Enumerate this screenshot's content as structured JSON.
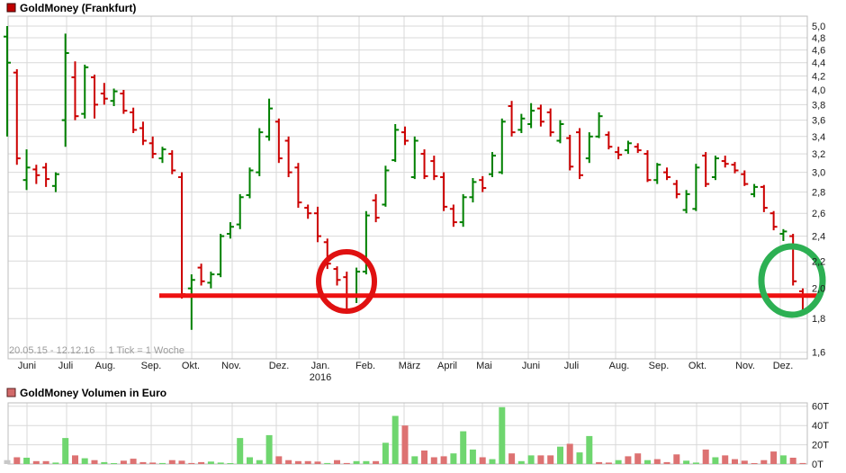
{
  "header": {
    "title": "GoldMoney (Frankfurt)",
    "marker_color": "#c00000"
  },
  "volume_header": {
    "title": "GoldMoney Volumen in Euro",
    "marker_color": "#d26a6a"
  },
  "footer_info": {
    "period": "20.05.15 - 12.12.16",
    "tick": "1 Tick = 1 Woche"
  },
  "axis": {
    "year_label": "2016",
    "months": [
      {
        "label": "Juni",
        "label_x": 30,
        "line_x": 30
      },
      {
        "label": "Juli",
        "label_x": 73,
        "line_x": 74
      },
      {
        "label": "Aug.",
        "label_x": 117,
        "line_x": 118
      },
      {
        "label": "Sep.",
        "label_x": 168,
        "line_x": 168
      },
      {
        "label": "Okt.",
        "label_x": 212,
        "line_x": 213
      },
      {
        "label": "Nov.",
        "label_x": 257,
        "line_x": 258
      },
      {
        "label": "Dez.",
        "label_x": 310,
        "line_x": 307
      },
      {
        "label": "Jan.",
        "label_x": 356,
        "line_x": 353
      },
      {
        "label": "Feb.",
        "label_x": 406,
        "line_x": 399
      },
      {
        "label": "März",
        "label_x": 455,
        "line_x": 449
      },
      {
        "label": "April",
        "label_x": 497,
        "line_x": 492
      },
      {
        "label": "Mai",
        "label_x": 538,
        "line_x": 536
      },
      {
        "label": "Juni",
        "label_x": 590,
        "line_x": 587
      },
      {
        "label": "Juli",
        "label_x": 635,
        "line_x": 632
      },
      {
        "label": "Aug.",
        "label_x": 688,
        "line_x": 684
      },
      {
        "label": "Sep.",
        "label_x": 732,
        "line_x": 728
      },
      {
        "label": "Okt.",
        "label_x": 775,
        "line_x": 774
      },
      {
        "label": "Nov.",
        "label_x": 828,
        "line_x": 823
      },
      {
        "label": "Dez.",
        "label_x": 870,
        "line_x": 867
      }
    ]
  },
  "colors": {
    "up": "#008000",
    "down": "#cc0000",
    "vol_up": "#6fd66f",
    "vol_down": "#dd7272",
    "vol_neutral": "#c8c8c8",
    "grid": "#d9d9d9",
    "border": "#bdbdbd",
    "support_line": "#ee1111",
    "red_circle": "#e01111",
    "green_circle": "#2db053"
  },
  "chart_data": [
    {
      "type": "ohlc",
      "title": "GoldMoney (Frankfurt)",
      "timeframe": "weekly",
      "scale": "log",
      "ylim": [
        1.5637,
        5.176
      ],
      "y_ticks": [
        5.0,
        4.8,
        4.6,
        4.4,
        4.2,
        4.0,
        3.8,
        3.6,
        3.4,
        3.2,
        3.0,
        2.8,
        2.6,
        2.4,
        2.2,
        2.0,
        1.8,
        1.6
      ],
      "y_tick_labels": [
        "5,0",
        "4,8",
        "4,6",
        "4,4",
        "4,2",
        "4,0",
        "3,8",
        "3,6",
        "3,4",
        "3,2",
        "3,0",
        "2,8",
        "2,6",
        "2,4",
        "2,2",
        "2,0",
        "1,8",
        "1,6"
      ],
      "bars_ohlc_dir": [
        [
          4.82,
          5.0,
          3.4,
          4.4,
          "g"
        ],
        [
          4.25,
          4.3,
          3.08,
          3.15,
          "r"
        ],
        [
          2.92,
          3.25,
          2.82,
          3.05,
          "g"
        ],
        [
          3.03,
          3.08,
          2.88,
          2.97,
          "r"
        ],
        [
          3.05,
          3.1,
          2.85,
          2.93,
          "r"
        ],
        [
          2.86,
          3.0,
          2.8,
          2.98,
          "g"
        ],
        [
          3.6,
          4.87,
          3.28,
          4.55,
          "g"
        ],
        [
          4.18,
          4.42,
          3.6,
          3.65,
          "r"
        ],
        [
          3.68,
          4.37,
          3.62,
          4.33,
          "g"
        ],
        [
          4.18,
          4.22,
          3.62,
          3.8,
          "r"
        ],
        [
          3.95,
          4.1,
          3.8,
          3.88,
          "r"
        ],
        [
          3.85,
          4.02,
          3.78,
          3.98,
          "g"
        ],
        [
          3.95,
          4.0,
          3.68,
          3.72,
          "r"
        ],
        [
          3.7,
          3.76,
          3.44,
          3.48,
          "r"
        ],
        [
          3.5,
          3.58,
          3.3,
          3.35,
          "r"
        ],
        [
          3.32,
          3.4,
          3.15,
          3.2,
          "r"
        ],
        [
          3.15,
          3.28,
          3.1,
          3.25,
          "g"
        ],
        [
          3.2,
          3.24,
          2.98,
          3.02,
          "r"
        ],
        [
          2.95,
          3.0,
          1.93,
          1.96,
          "r"
        ],
        [
          2.0,
          2.1,
          1.73,
          2.06,
          "g"
        ],
        [
          2.15,
          2.18,
          2.02,
          2.05,
          "r"
        ],
        [
          2.04,
          2.12,
          2.0,
          2.1,
          "g"
        ],
        [
          2.1,
          2.42,
          2.08,
          2.4,
          "g"
        ],
        [
          2.42,
          2.52,
          2.38,
          2.48,
          "g"
        ],
        [
          2.5,
          2.78,
          2.46,
          2.75,
          "g"
        ],
        [
          2.77,
          3.05,
          2.74,
          3.02,
          "g"
        ],
        [
          3.0,
          3.5,
          2.96,
          3.45,
          "g"
        ],
        [
          3.4,
          3.88,
          3.35,
          3.75,
          "g"
        ],
        [
          3.58,
          3.62,
          3.1,
          3.15,
          "r"
        ],
        [
          3.35,
          3.4,
          2.95,
          3.0,
          "r"
        ],
        [
          3.05,
          3.1,
          2.65,
          2.7,
          "r"
        ],
        [
          2.65,
          2.68,
          2.55,
          2.6,
          "r"
        ],
        [
          2.6,
          2.66,
          2.35,
          2.4,
          "r"
        ],
        [
          2.35,
          2.38,
          2.14,
          2.18,
          "r"
        ],
        [
          2.14,
          2.16,
          2.02,
          2.06,
          "r"
        ],
        [
          2.08,
          2.12,
          1.86,
          1.95,
          "r"
        ],
        [
          1.95,
          2.15,
          1.9,
          2.12,
          "g"
        ],
        [
          2.12,
          2.62,
          2.1,
          2.58,
          "g"
        ],
        [
          2.72,
          2.78,
          2.52,
          2.56,
          "r"
        ],
        [
          2.68,
          3.07,
          2.66,
          3.02,
          "g"
        ],
        [
          3.13,
          3.55,
          3.11,
          3.48,
          "g"
        ],
        [
          3.45,
          3.52,
          3.3,
          3.35,
          "r"
        ],
        [
          2.95,
          3.4,
          2.93,
          3.35,
          "g"
        ],
        [
          3.2,
          3.25,
          2.93,
          2.96,
          "r"
        ],
        [
          3.12,
          3.18,
          2.92,
          2.96,
          "r"
        ],
        [
          2.95,
          3.0,
          2.62,
          2.66,
          "r"
        ],
        [
          2.64,
          2.68,
          2.48,
          2.52,
          "r"
        ],
        [
          2.52,
          2.78,
          2.48,
          2.75,
          "g"
        ],
        [
          2.75,
          2.94,
          2.7,
          2.9,
          "g"
        ],
        [
          2.92,
          2.96,
          2.8,
          2.84,
          "r"
        ],
        [
          2.98,
          3.22,
          2.95,
          3.18,
          "g"
        ],
        [
          3.0,
          3.62,
          2.98,
          3.58,
          "g"
        ],
        [
          3.78,
          3.85,
          3.4,
          3.45,
          "r"
        ],
        [
          3.48,
          3.68,
          3.44,
          3.62,
          "g"
        ],
        [
          3.55,
          3.82,
          3.5,
          3.72,
          "g"
        ],
        [
          3.75,
          3.8,
          3.52,
          3.58,
          "r"
        ],
        [
          3.7,
          3.75,
          3.4,
          3.45,
          "r"
        ],
        [
          3.35,
          3.6,
          3.32,
          3.55,
          "g"
        ],
        [
          3.38,
          3.42,
          3.02,
          3.06,
          "r"
        ],
        [
          3.45,
          3.5,
          2.93,
          2.97,
          "r"
        ],
        [
          3.15,
          3.45,
          3.1,
          3.4,
          "g"
        ],
        [
          3.4,
          3.7,
          3.38,
          3.65,
          "g"
        ],
        [
          3.42,
          3.46,
          3.25,
          3.28,
          "r"
        ],
        [
          3.22,
          3.28,
          3.14,
          3.19,
          "r"
        ],
        [
          3.24,
          3.35,
          3.2,
          3.32,
          "g"
        ],
        [
          3.28,
          3.32,
          3.21,
          3.24,
          "r"
        ],
        [
          3.2,
          3.24,
          2.9,
          2.92,
          "r"
        ],
        [
          2.92,
          3.1,
          2.88,
          3.08,
          "g"
        ],
        [
          3.0,
          3.05,
          2.92,
          2.95,
          "r"
        ],
        [
          2.88,
          2.92,
          2.74,
          2.78,
          "r"
        ],
        [
          2.63,
          2.82,
          2.6,
          2.78,
          "g"
        ],
        [
          2.64,
          3.09,
          2.62,
          3.05,
          "g"
        ],
        [
          3.18,
          3.22,
          2.85,
          2.88,
          "r"
        ],
        [
          2.95,
          3.18,
          2.92,
          3.15,
          "g"
        ],
        [
          3.12,
          3.18,
          3.05,
          3.09,
          "r"
        ],
        [
          3.08,
          3.11,
          2.99,
          3.02,
          "r"
        ],
        [
          2.98,
          3.02,
          2.86,
          2.88,
          "r"
        ],
        [
          2.78,
          2.88,
          2.75,
          2.85,
          "g"
        ],
        [
          2.85,
          2.87,
          2.61,
          2.65,
          "r"
        ],
        [
          2.6,
          2.62,
          2.45,
          2.48,
          "r"
        ],
        [
          2.42,
          2.46,
          2.36,
          2.44,
          "g"
        ],
        [
          2.4,
          2.42,
          2.02,
          2.05,
          "r"
        ],
        [
          1.98,
          2.0,
          1.85,
          1.95,
          "r"
        ]
      ],
      "annotations": {
        "support_line": {
          "price": 1.95,
          "x1": 177,
          "x2": 913
        },
        "circles": [
          {
            "name": "red-circle",
            "week_index": 35,
            "cx": 385,
            "cy": 313,
            "rx": 31,
            "ry": 33,
            "color_key": "red_circle",
            "stroke": 6
          },
          {
            "name": "green-circle",
            "week_index": 81,
            "cx": 880,
            "cy": 312,
            "rx": 34,
            "ry": 38,
            "color_key": "green_circle",
            "stroke": 7
          }
        ]
      }
    },
    {
      "type": "bar",
      "title": "GoldMoney Volumen in Euro",
      "unit": "T",
      "ylim": [
        0,
        63.5
      ],
      "y_ticks": [
        0,
        20,
        40,
        60
      ],
      "y_tick_labels": [
        "0T",
        "20T",
        "40T",
        "60T"
      ],
      "values": [
        4,
        7,
        6.5,
        3,
        3,
        1.5,
        27,
        9,
        6,
        4,
        2,
        0.5,
        3.5,
        5.5,
        2,
        1.5,
        1,
        4,
        3.5,
        1,
        2,
        2.5,
        1.5,
        0.7,
        27,
        7,
        4,
        30,
        8,
        4,
        3,
        3,
        2.5,
        1,
        4,
        1,
        3,
        3,
        3,
        22,
        50,
        40,
        8,
        14,
        7,
        8,
        11,
        34,
        15,
        7,
        5,
        59,
        11,
        3,
        9,
        9,
        9,
        18,
        21,
        12,
        29,
        2,
        1.5,
        4,
        8,
        11,
        4,
        5,
        2,
        10,
        3.5,
        1.5,
        15,
        7,
        9,
        5,
        3.5,
        0.5,
        4,
        13,
        9,
        6.5,
        1
      ],
      "bar_colors": [
        "n",
        "r",
        "g",
        "r",
        "r",
        "g",
        "g",
        "r",
        "g",
        "r",
        "g",
        "g",
        "r",
        "r",
        "r",
        "r",
        "g",
        "r",
        "r",
        "r",
        "r",
        "g",
        "g",
        "g",
        "g",
        "g",
        "g",
        "g",
        "r",
        "r",
        "r",
        "r",
        "r",
        "g",
        "r",
        "r",
        "g",
        "g",
        "r",
        "g",
        "g",
        "r",
        "g",
        "r",
        "r",
        "r",
        "g",
        "g",
        "g",
        "r",
        "g",
        "g",
        "r",
        "g",
        "g",
        "r",
        "r",
        "g",
        "r",
        "g",
        "g",
        "r",
        "r",
        "g",
        "r",
        "r",
        "g",
        "r",
        "r",
        "r",
        "g",
        "g",
        "r",
        "g",
        "r",
        "r",
        "r",
        "r",
        "r",
        "r",
        "g",
        "r",
        "r"
      ]
    }
  ]
}
